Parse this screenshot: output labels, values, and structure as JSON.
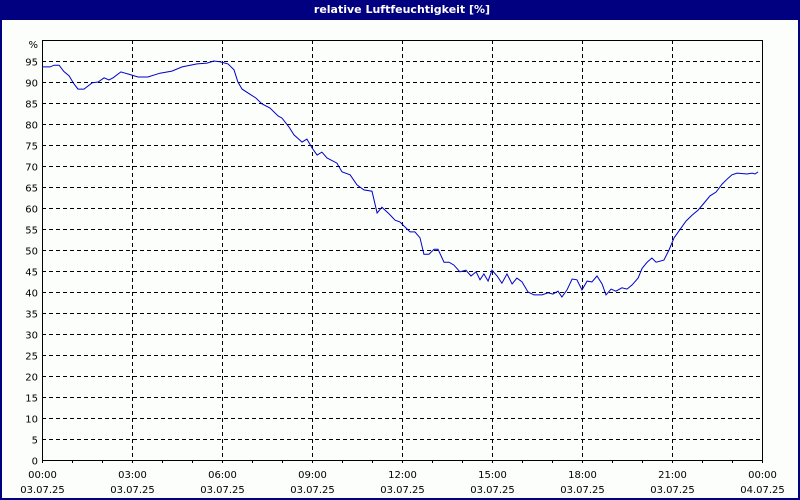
{
  "window": {
    "title": "relative Luftfeuchtigkeit [%]"
  },
  "colors": {
    "title_bar": "#000080",
    "line": "#0000c8",
    "grid": "#000000",
    "background": "#fcfefc"
  },
  "chart_data": {
    "type": "line",
    "title": "relative Luftfeuchtigkeit [%]",
    "xlabel": "",
    "ylabel": "%",
    "ylim": [
      0,
      100
    ],
    "xlim_hours": [
      0,
      24
    ],
    "grid": true,
    "legend": null,
    "y_ticks": [
      0,
      5,
      10,
      15,
      20,
      25,
      30,
      35,
      40,
      45,
      50,
      55,
      60,
      65,
      70,
      75,
      80,
      85,
      90,
      95
    ],
    "y_unit_label": "%",
    "x_ticks": [
      {
        "hour": 0,
        "time": "00:00",
        "date": "03.07.25"
      },
      {
        "hour": 3,
        "time": "03:00",
        "date": "03.07.25"
      },
      {
        "hour": 6,
        "time": "06:00",
        "date": "03.07.25"
      },
      {
        "hour": 9,
        "time": "09:00",
        "date": "03.07.25"
      },
      {
        "hour": 12,
        "time": "12:00",
        "date": "03.07.25"
      },
      {
        "hour": 15,
        "time": "15:00",
        "date": "03.07.25"
      },
      {
        "hour": 18,
        "time": "18:00",
        "date": "03.07.25"
      },
      {
        "hour": 21,
        "time": "21:00",
        "date": "03.07.25"
      },
      {
        "hour": 24,
        "time": "00:00",
        "date": "04.07.25"
      }
    ],
    "series": [
      {
        "name": "relative Luftfeuchtigkeit",
        "unit": "%",
        "x_hours": [
          0.0,
          0.27,
          0.4,
          0.57,
          0.73,
          0.9,
          1.07,
          1.2,
          1.4,
          1.67,
          1.87,
          2.07,
          2.23,
          2.37,
          2.63,
          2.87,
          3.2,
          3.53,
          3.93,
          4.33,
          4.67,
          5.17,
          5.5,
          5.73,
          5.93,
          6.2,
          6.4,
          6.53,
          6.67,
          6.93,
          7.13,
          7.33,
          7.6,
          7.87,
          8.0,
          8.23,
          8.4,
          8.67,
          8.83,
          9.0,
          9.17,
          9.33,
          9.5,
          9.83,
          10.0,
          10.27,
          10.5,
          10.73,
          11.0,
          11.17,
          11.33,
          11.57,
          11.77,
          11.93,
          12.07,
          12.27,
          12.43,
          12.6,
          12.73,
          12.9,
          13.07,
          13.2,
          13.4,
          13.57,
          13.73,
          13.93,
          14.13,
          14.3,
          14.47,
          14.6,
          14.73,
          14.87,
          15.0,
          15.17,
          15.33,
          15.5,
          15.67,
          15.83,
          16.0,
          16.2,
          16.4,
          16.67,
          16.87,
          17.03,
          17.2,
          17.33,
          17.5,
          17.67,
          17.83,
          18.0,
          18.17,
          18.33,
          18.5,
          18.67,
          18.8,
          18.97,
          19.13,
          19.33,
          19.5,
          19.67,
          19.87,
          20.0,
          20.17,
          20.33,
          20.47,
          20.73,
          20.9,
          21.07,
          21.23,
          21.47,
          21.67,
          21.87,
          22.07,
          22.27,
          22.47,
          22.67,
          22.87,
          23.0,
          23.17,
          23.5,
          23.67,
          23.77,
          23.87
        ],
        "values": [
          93.6,
          93.6,
          94.0,
          94.0,
          92.5,
          91.5,
          89.5,
          88.3,
          88.3,
          89.8,
          90.0,
          91.0,
          90.5,
          91.0,
          92.4,
          91.9,
          91.2,
          91.2,
          92.1,
          92.6,
          93.6,
          94.3,
          94.5,
          95.0,
          94.8,
          94.3,
          92.9,
          90.0,
          88.3,
          87.1,
          86.2,
          84.8,
          83.8,
          81.9,
          81.4,
          79.3,
          77.4,
          75.7,
          76.4,
          74.3,
          72.6,
          73.3,
          71.9,
          70.7,
          68.6,
          67.9,
          65.5,
          64.3,
          64.0,
          58.8,
          60.2,
          58.6,
          57.1,
          56.7,
          55.7,
          54.3,
          54.3,
          52.9,
          49.0,
          49.0,
          50.2,
          50.2,
          47.1,
          47.1,
          46.4,
          44.8,
          45.2,
          43.8,
          44.8,
          42.9,
          44.3,
          42.6,
          45.2,
          43.8,
          42.1,
          44.3,
          41.9,
          43.3,
          42.4,
          40.0,
          39.3,
          39.3,
          39.8,
          39.5,
          40.2,
          38.8,
          40.5,
          43.1,
          42.9,
          40.5,
          42.6,
          42.4,
          43.8,
          41.9,
          39.3,
          40.7,
          40.2,
          41.0,
          40.7,
          41.7,
          43.3,
          45.6,
          47.1,
          48.1,
          47.1,
          47.6,
          50.0,
          52.9,
          54.5,
          56.9,
          58.3,
          59.5,
          61.2,
          62.9,
          63.8,
          65.7,
          67.1,
          67.9,
          68.3,
          68.1,
          68.3,
          68.1,
          68.6
        ]
      }
    ]
  }
}
